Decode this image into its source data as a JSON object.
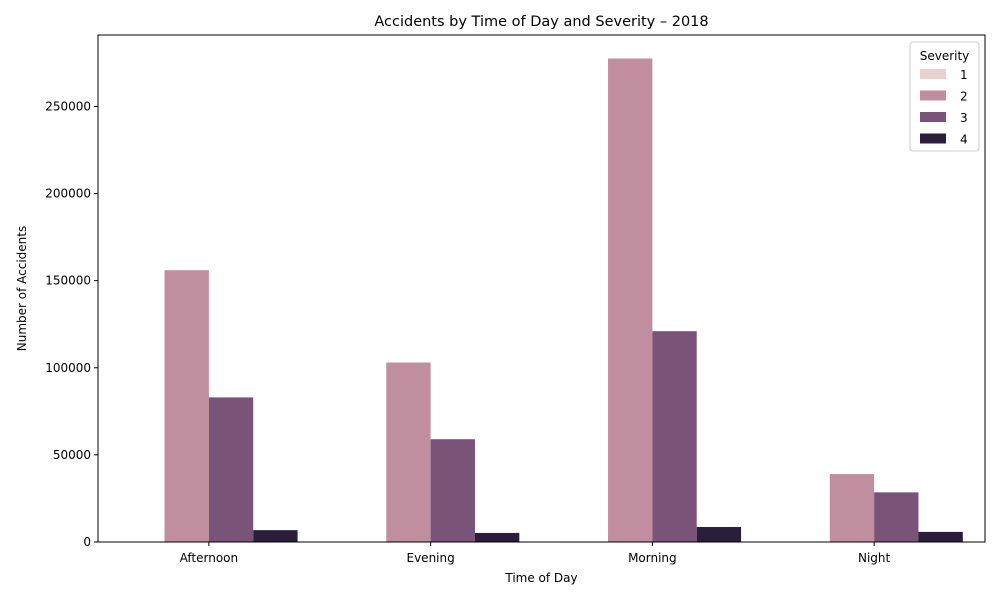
{
  "chart_data": {
    "type": "bar",
    "title": "Accidents by Time of Day and Severity – 2018",
    "xlabel": "Time of Day",
    "ylabel": "Number of Accidents",
    "categories": [
      "Afternoon",
      "Evening",
      "Morning",
      "Night"
    ],
    "ylim": [
      0,
      291000
    ],
    "yticks": [
      "0",
      "50000",
      "100000",
      "150000",
      "200000",
      "250000"
    ],
    "ytick_values": [
      0,
      50000,
      100000,
      150000,
      200000,
      250000
    ],
    "grid": false,
    "legend": {
      "title": "Severity",
      "placement": "top-right"
    },
    "series": [
      {
        "name": "1",
        "color": "#ebd0ce",
        "values": [
          0,
          0,
          300,
          0
        ]
      },
      {
        "name": "2",
        "color": "#c08e9e",
        "values": [
          156000,
          103000,
          277500,
          39000
        ]
      },
      {
        "name": "3",
        "color": "#7a5478",
        "values": [
          83000,
          59000,
          121000,
          28500
        ]
      },
      {
        "name": "4",
        "color": "#2a1e3c",
        "values": [
          6800,
          5200,
          8600,
          5800
        ]
      }
    ]
  }
}
